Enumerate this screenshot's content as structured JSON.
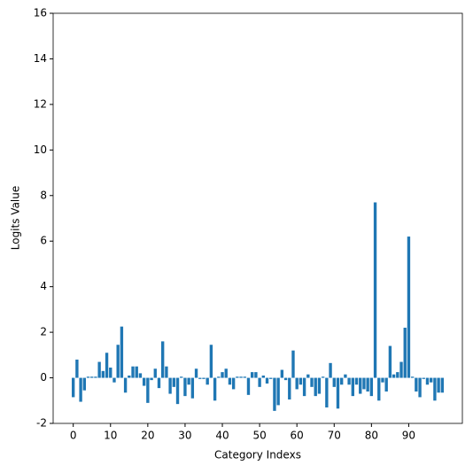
{
  "chart_data": {
    "type": "bar",
    "xlabel": "Category Indexs",
    "ylabel": "Logits Value",
    "x": [
      0,
      1,
      2,
      3,
      4,
      5,
      6,
      7,
      8,
      9,
      10,
      11,
      12,
      13,
      14,
      15,
      16,
      17,
      18,
      19,
      20,
      21,
      22,
      23,
      24,
      25,
      26,
      27,
      28,
      29,
      30,
      31,
      32,
      33,
      34,
      35,
      36,
      37,
      38,
      39,
      40,
      41,
      42,
      43,
      44,
      45,
      46,
      47,
      48,
      49,
      50,
      51,
      52,
      53,
      54,
      55,
      56,
      57,
      58,
      59,
      60,
      61,
      62,
      63,
      64,
      65,
      66,
      67,
      68,
      69,
      70,
      71,
      72,
      73,
      74,
      75,
      76,
      77,
      78,
      79,
      80,
      81,
      82,
      83,
      84,
      85,
      86,
      87,
      88,
      89,
      90,
      91,
      92,
      93,
      94,
      95,
      96,
      97,
      98,
      99
    ],
    "values": [
      -0.85,
      0.8,
      -1.05,
      -0.55,
      0.05,
      0.05,
      0.05,
      0.7,
      0.3,
      1.1,
      0.45,
      -0.2,
      1.45,
      2.25,
      -0.65,
      0.1,
      0.5,
      0.5,
      0.2,
      -0.35,
      -1.1,
      -0.1,
      0.4,
      -0.45,
      1.6,
      0.5,
      -0.7,
      -0.4,
      -1.15,
      0.05,
      -0.8,
      -0.3,
      -0.9,
      0.4,
      -0.05,
      -0.05,
      -0.3,
      1.45,
      -1.0,
      0.05,
      0.25,
      0.4,
      -0.3,
      -0.5,
      0.05,
      0.05,
      0.05,
      -0.75,
      0.25,
      0.25,
      -0.4,
      0.1,
      -0.25,
      -0.05,
      -1.45,
      -1.2,
      0.35,
      -0.1,
      -0.95,
      1.2,
      -0.5,
      -0.3,
      -0.8,
      0.15,
      -0.4,
      -0.8,
      -0.7,
      0.05,
      -1.3,
      0.65,
      -0.4,
      -1.35,
      -0.3,
      0.15,
      -0.3,
      -0.8,
      -0.3,
      -0.7,
      -0.5,
      -0.6,
      -0.8,
      7.7,
      -1.0,
      -0.2,
      -0.6,
      1.4,
      0.15,
      0.25,
      0.7,
      2.2,
      6.2,
      0.05,
      -0.6,
      -0.85,
      -0.05,
      -0.3,
      -0.2,
      -1.0,
      -0.65,
      -0.65
    ],
    "color": "#1f77b4",
    "xlim": [
      -5.39,
      104.39
    ],
    "xticks": [
      0,
      10,
      20,
      30,
      40,
      50,
      60,
      70,
      80,
      90
    ],
    "ylim": [
      -2,
      16
    ],
    "yticks": [
      -2,
      0,
      2,
      4,
      6,
      8,
      10,
      12,
      14,
      16
    ],
    "grid": false
  }
}
